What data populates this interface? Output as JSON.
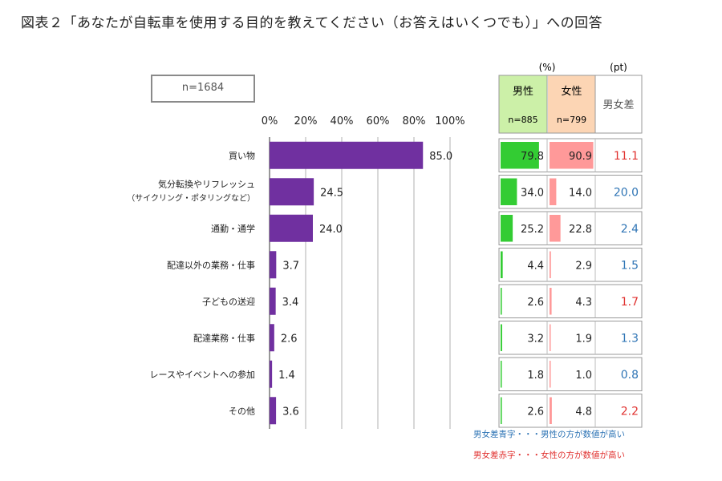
{
  "title": "図表２「あなたが自転車を使用する目的を教えてください（お答えはいくつでも）」への回答",
  "sample_label": "n=1684",
  "table": {
    "unit_percent": "(%)",
    "unit_pt": "(pt)",
    "male_label": "男性",
    "male_n": "n=885",
    "female_label": "女性",
    "female_n": "n=799",
    "diff_label": "男女差"
  },
  "notes": {
    "blue": "男女差青字・・・男性の方が数値が高い",
    "red": "男女差赤字・・・女性の方が数値が高い"
  },
  "colors": {
    "bar": "#7030a0",
    "male_bar": "#33cc33",
    "male_header": "#ccf0a8",
    "female_bar": "#ff9999",
    "female_header": "#fcd5b4",
    "diff_blue": "#2e74b5",
    "diff_red": "#e0312f"
  },
  "chart_data": {
    "type": "bar",
    "orientation": "horizontal",
    "x_ticks": [
      "0%",
      "20%",
      "40%",
      "60%",
      "80%",
      "100%"
    ],
    "xlim": [
      0,
      100
    ],
    "categories": [
      {
        "label": "買い物",
        "sublabel": ""
      },
      {
        "label": "気分転換やリフレッシュ",
        "sublabel": "（サイクリング・ポタリングなど）"
      },
      {
        "label": "通勤・通学",
        "sublabel": ""
      },
      {
        "label": "配達以外の業務・仕事",
        "sublabel": ""
      },
      {
        "label": "子どもの送迎",
        "sublabel": ""
      },
      {
        "label": "配達業務・仕事",
        "sublabel": ""
      },
      {
        "label": "レースやイベントへの参加",
        "sublabel": ""
      },
      {
        "label": "その他",
        "sublabel": ""
      }
    ],
    "values": [
      85.0,
      24.5,
      24.0,
      3.7,
      3.4,
      2.6,
      1.4,
      3.6
    ],
    "value_labels": [
      "85.0",
      "24.5",
      "24.0",
      "3.7",
      "3.4",
      "2.6",
      "1.4",
      "3.6"
    ],
    "male": [
      79.8,
      34.0,
      25.2,
      4.4,
      2.6,
      3.2,
      1.8,
      2.6
    ],
    "male_labels": [
      "79.8",
      "34.0",
      "25.2",
      "4.4",
      "2.6",
      "3.2",
      "1.8",
      "2.6"
    ],
    "female": [
      90.9,
      14.0,
      22.8,
      2.9,
      4.3,
      1.9,
      1.0,
      4.8
    ],
    "female_labels": [
      "90.9",
      "14.0",
      "22.8",
      "2.9",
      "4.3",
      "1.9",
      "1.0",
      "4.8"
    ],
    "diff": [
      "11.1",
      "20.0",
      "2.4",
      "1.5",
      "1.7",
      "1.3",
      "0.8",
      "2.2"
    ],
    "diff_higher": [
      "female",
      "male",
      "male",
      "male",
      "female",
      "male",
      "male",
      "female"
    ]
  }
}
